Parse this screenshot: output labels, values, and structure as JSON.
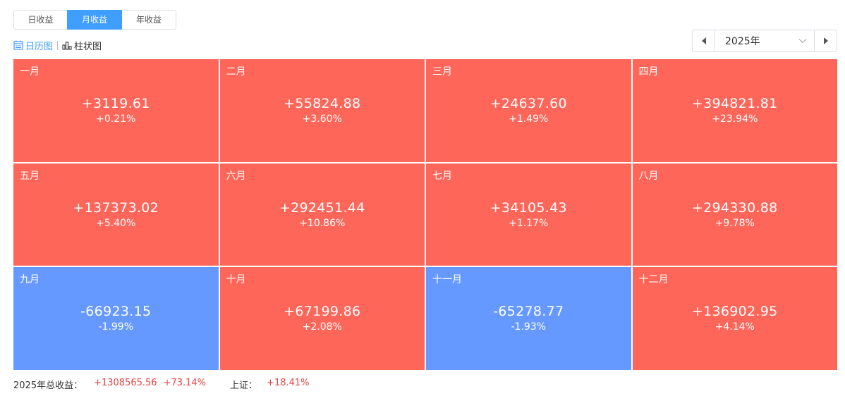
{
  "period_tabs": [
    {
      "label": "日收益",
      "width": 0
    },
    {
      "label": "月收益",
      "active": true
    },
    {
      "label": "年收益"
    }
  ],
  "view_toggle": {
    "calendar_label": "日历图",
    "bar_label": "柱状图",
    "active": "calendar"
  },
  "year_picker": {
    "value": "2025年",
    "prev_icon": "caret-left-icon",
    "next_icon": "caret-right-icon",
    "dropdown_icon": "chevron-down-icon"
  },
  "colors": {
    "gain": "#ff665a",
    "loss": "#6699ff",
    "accent": "#409eff",
    "positive_text": "#e64545"
  },
  "months": [
    {
      "name": "一月",
      "amount": "+3119.61",
      "pct": "+0.21%",
      "trend": "gain"
    },
    {
      "name": "二月",
      "amount": "+55824.88",
      "pct": "+3.60%",
      "trend": "gain"
    },
    {
      "name": "三月",
      "amount": "+24637.60",
      "pct": "+1.49%",
      "trend": "gain"
    },
    {
      "name": "四月",
      "amount": "+394821.81",
      "pct": "+23.94%",
      "trend": "gain"
    },
    {
      "name": "五月",
      "amount": "+137373.02",
      "pct": "+5.40%",
      "trend": "gain"
    },
    {
      "name": "六月",
      "amount": "+292451.44",
      "pct": "+10.86%",
      "trend": "gain"
    },
    {
      "name": "七月",
      "amount": "+34105.43",
      "pct": "+1.17%",
      "trend": "gain"
    },
    {
      "name": "八月",
      "amount": "+294330.88",
      "pct": "+9.78%",
      "trend": "gain"
    },
    {
      "name": "九月",
      "amount": "-66923.15",
      "pct": "-1.99%",
      "trend": "loss"
    },
    {
      "name": "十月",
      "amount": "+67199.86",
      "pct": "+2.08%",
      "trend": "gain"
    },
    {
      "name": "十一月",
      "amount": "-65278.77",
      "pct": "-1.93%",
      "trend": "loss"
    },
    {
      "name": "十二月",
      "amount": "+136902.95",
      "pct": "+4.14%",
      "trend": "gain"
    }
  ],
  "summary": {
    "total_label": "2025年总收益：",
    "total_amount": "+1308565.56",
    "total_pct": "+73.14%",
    "index_label": "上证：",
    "index_pct": "+18.41%"
  }
}
